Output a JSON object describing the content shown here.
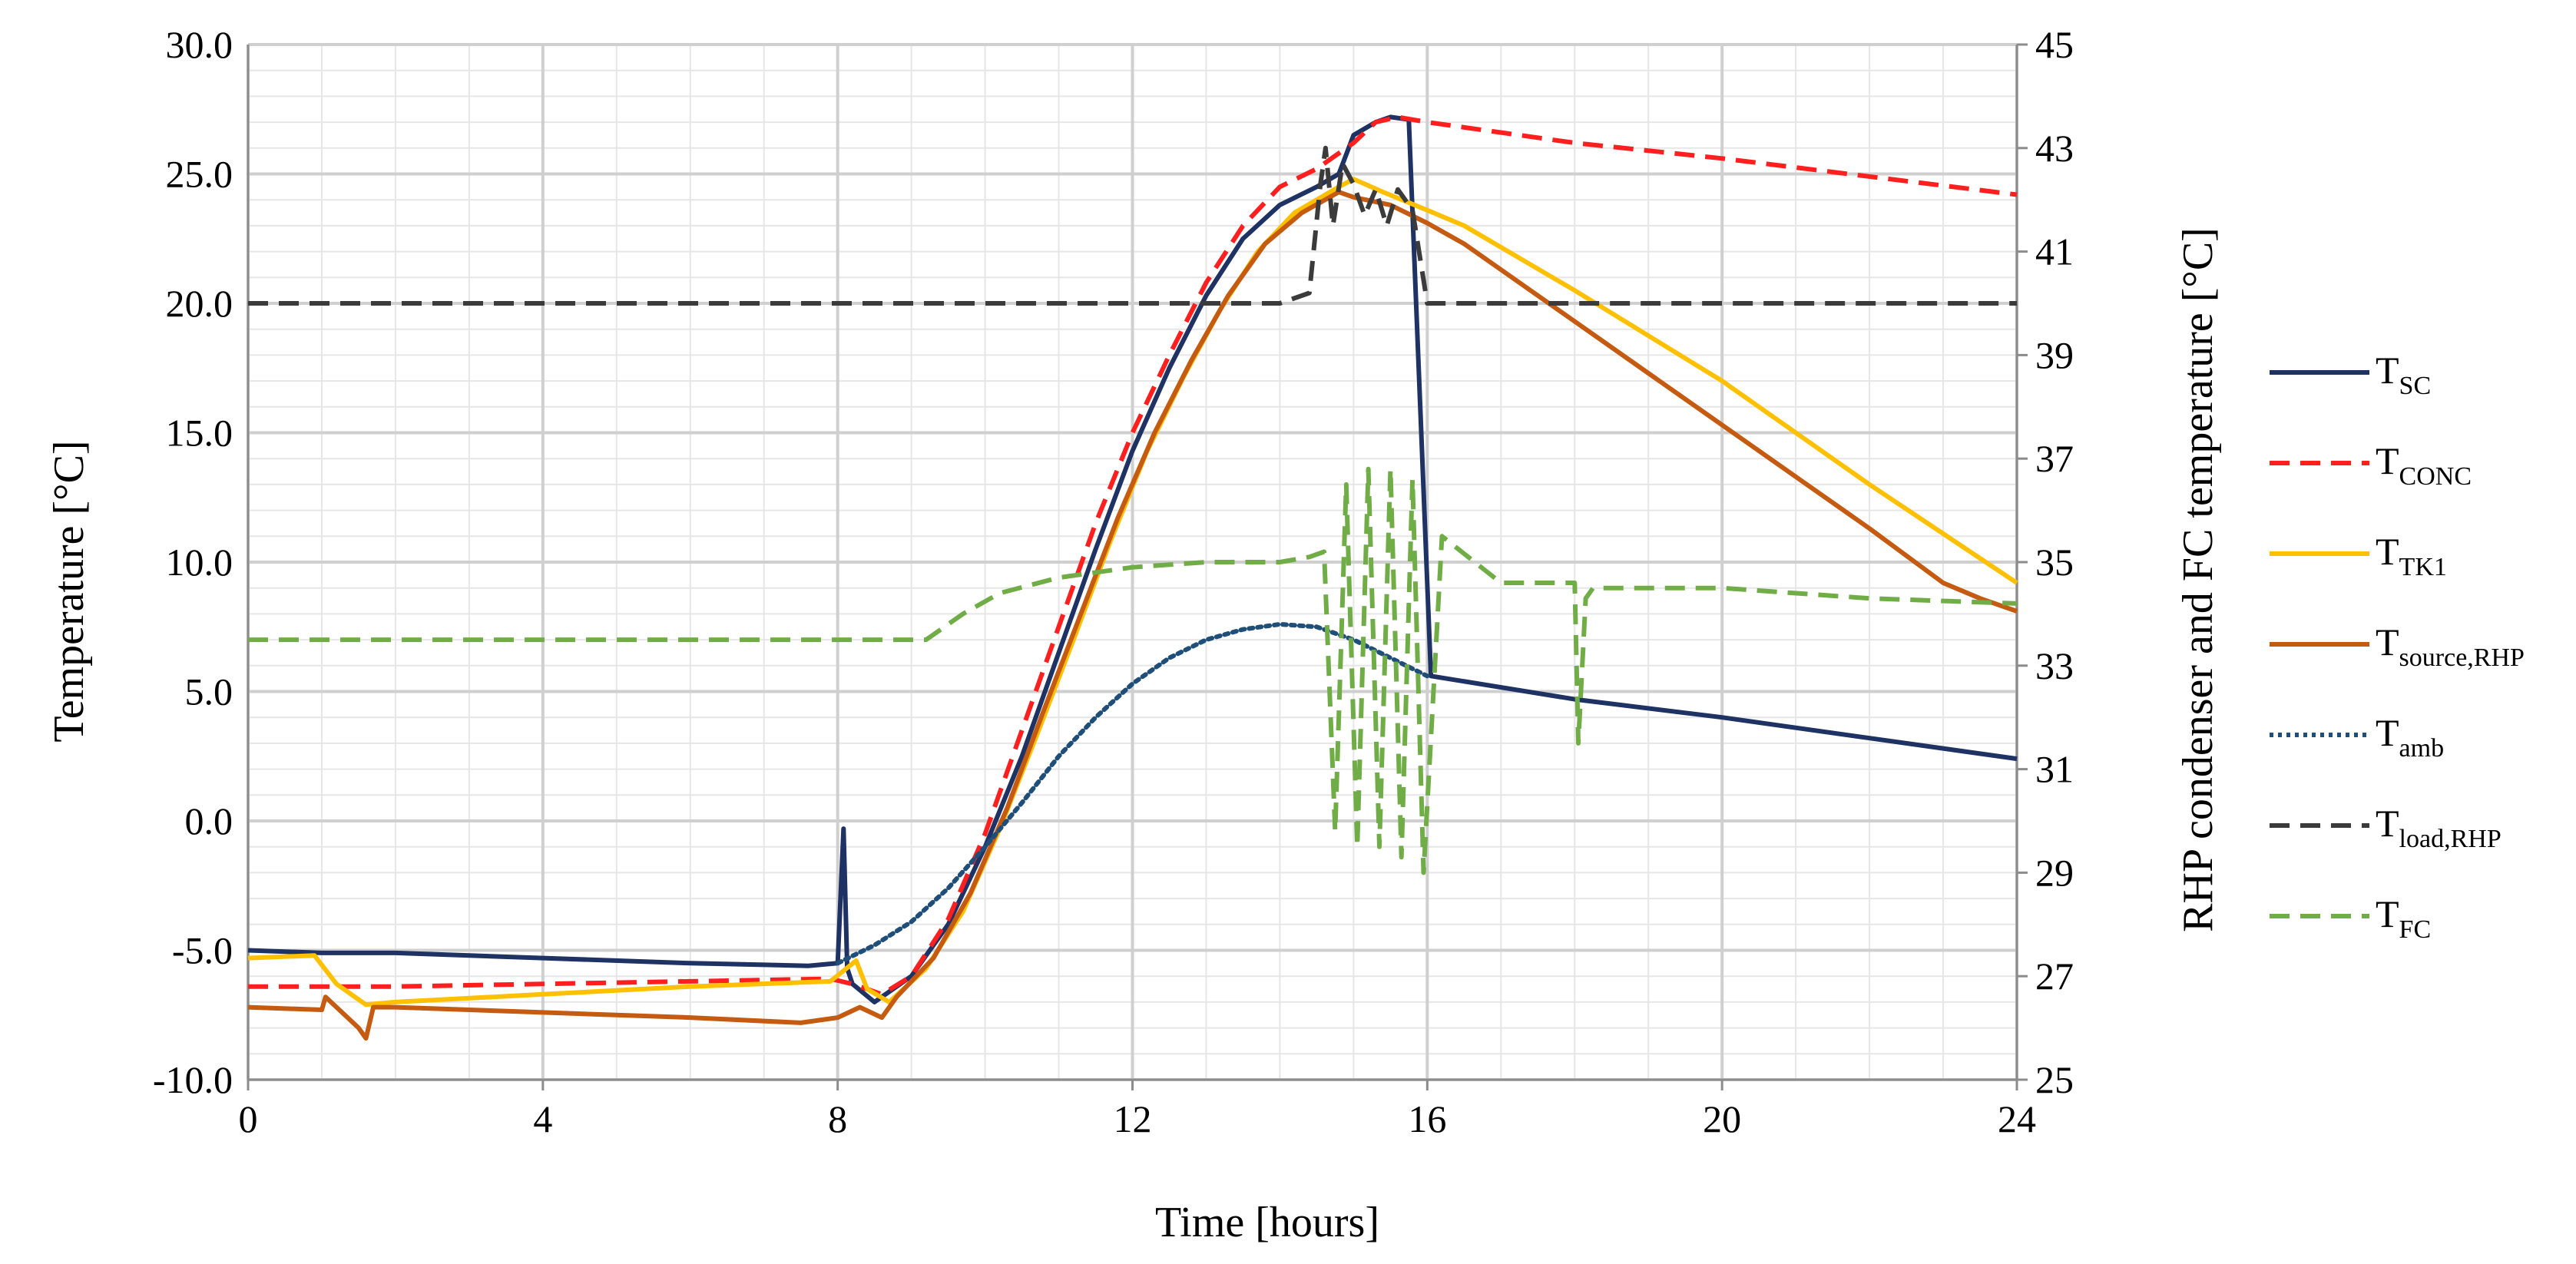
{
  "chart_data": {
    "type": "line",
    "xlabel": "Time [hours]",
    "ylabel": "Temperature [°C]",
    "y2label": "RHP condenser and FC temperature [°C]",
    "xlim": [
      0,
      24
    ],
    "ylim": [
      -10,
      30
    ],
    "y2lim": [
      25,
      45
    ],
    "grid": true,
    "legend_position": "right",
    "x_ticks": [
      {
        "value": 0,
        "label": "0"
      },
      {
        "value": 4,
        "label": "4"
      },
      {
        "value": 8,
        "label": "8"
      },
      {
        "value": 12,
        "label": "12"
      },
      {
        "value": 16,
        "label": "16"
      },
      {
        "value": 20,
        "label": "20"
      },
      {
        "value": 24,
        "label": "24"
      }
    ],
    "y_ticks": [
      {
        "value": -10,
        "label": "-10.0"
      },
      {
        "value": -5,
        "label": "-5.0"
      },
      {
        "value": 0,
        "label": "0.0"
      },
      {
        "value": 5,
        "label": "5.0"
      },
      {
        "value": 10,
        "label": "10.0"
      },
      {
        "value": 15,
        "label": "15.0"
      },
      {
        "value": 20,
        "label": "20.0"
      },
      {
        "value": 25,
        "label": "25.0"
      },
      {
        "value": 30,
        "label": "30.0"
      }
    ],
    "y2_ticks": [
      {
        "value": 25,
        "label": "25"
      },
      {
        "value": 27,
        "label": "27"
      },
      {
        "value": 29,
        "label": "29"
      },
      {
        "value": 31,
        "label": "31"
      },
      {
        "value": 33,
        "label": "33"
      },
      {
        "value": 35,
        "label": "35"
      },
      {
        "value": 37,
        "label": "37"
      },
      {
        "value": 39,
        "label": "39"
      },
      {
        "value": 41,
        "label": "41"
      },
      {
        "value": 43,
        "label": "43"
      },
      {
        "value": 45,
        "label": "45"
      }
    ],
    "series": [
      {
        "id": "tsc",
        "name": "T",
        "sub": "SC",
        "axis": "left",
        "color": "#1f3264",
        "dash": "solid",
        "x": [
          0,
          1,
          2,
          4,
          6,
          7.6,
          8.0,
          8.08,
          8.13,
          8.2,
          8.5,
          9.0,
          9.5,
          10.0,
          10.5,
          11,
          11.5,
          12,
          12.5,
          13,
          13.5,
          14,
          14.5,
          14.8,
          15.0,
          15.3,
          15.5,
          15.75,
          16.05,
          18,
          20,
          22,
          24
        ],
        "y": [
          -5.0,
          -5.1,
          -5.1,
          -5.3,
          -5.5,
          -5.6,
          -5.5,
          -0.3,
          -5.7,
          -6.3,
          -7.0,
          -6.0,
          -4.0,
          -1.0,
          2.5,
          6.5,
          10.5,
          14.3,
          17.5,
          20.3,
          22.5,
          23.8,
          24.5,
          25.0,
          26.5,
          27.0,
          27.2,
          27.1,
          5.6,
          4.7,
          4.0,
          3.2,
          2.4
        ]
      },
      {
        "id": "tconc",
        "name": "T",
        "sub": "CONC",
        "axis": "left",
        "color": "#ff1f1f",
        "dash": "dashed",
        "x": [
          0,
          2,
          4,
          6,
          7.9,
          8.2,
          8.6,
          9.0,
          9.5,
          10.0,
          10.5,
          11,
          11.5,
          12,
          12.5,
          13,
          13.5,
          14,
          14.5,
          15,
          15.3,
          15.6,
          16,
          18,
          20,
          22,
          24
        ],
        "y": [
          -6.4,
          -6.4,
          -6.3,
          -6.2,
          -6.1,
          -6.3,
          -6.7,
          -6.0,
          -3.8,
          -0.5,
          3.5,
          7.5,
          11.5,
          15.0,
          18.0,
          20.8,
          23.0,
          24.5,
          25.2,
          26.2,
          27.0,
          27.2,
          27.0,
          26.2,
          25.6,
          24.9,
          24.2
        ]
      },
      {
        "id": "ttk1",
        "name": "T",
        "sub": "TK1",
        "axis": "left",
        "color": "#ffc000",
        "dash": "solid",
        "x": [
          0,
          0.9,
          1.2,
          1.6,
          2.0,
          4,
          6,
          7.9,
          8.25,
          8.4,
          8.7,
          9.2,
          9.7,
          10.2,
          10.7,
          11.2,
          11.7,
          12.2,
          12.7,
          13.2,
          13.7,
          14.2,
          14.8,
          15.0,
          15.4,
          16.0,
          16.5,
          18,
          20,
          22,
          24
        ],
        "y": [
          -5.3,
          -5.2,
          -6.3,
          -7.1,
          -7.0,
          -6.7,
          -6.4,
          -6.2,
          -5.4,
          -6.5,
          -7.0,
          -5.7,
          -3.5,
          -0.3,
          3.3,
          7.0,
          10.8,
          14.3,
          17.2,
          19.8,
          22.0,
          23.5,
          24.5,
          24.8,
          24.3,
          23.6,
          23.0,
          20.5,
          17.0,
          13.0,
          9.2
        ]
      },
      {
        "id": "tsource",
        "name": "T",
        "sub": "source,RHP",
        "axis": "left",
        "color": "#c55a11",
        "dash": "solid",
        "x": [
          0,
          1.0,
          1.05,
          1.5,
          1.6,
          1.7,
          2.0,
          4,
          6,
          7.5,
          8.0,
          8.3,
          8.6,
          8.8,
          9.3,
          9.8,
          10.3,
          10.8,
          11.3,
          11.8,
          12.3,
          12.8,
          13.3,
          13.8,
          14.3,
          14.8,
          15.0,
          15.5,
          16,
          16.5,
          17,
          18,
          19,
          20,
          21,
          22,
          23,
          23.5,
          24
        ],
        "y": [
          -7.2,
          -7.3,
          -6.8,
          -8.0,
          -8.4,
          -7.2,
          -7.2,
          -7.4,
          -7.6,
          -7.8,
          -7.6,
          -7.2,
          -7.6,
          -6.8,
          -5.3,
          -2.8,
          0.5,
          4.3,
          8.0,
          11.7,
          15.0,
          17.8,
          20.3,
          22.3,
          23.5,
          24.3,
          24.1,
          23.8,
          23.1,
          22.3,
          21.3,
          19.3,
          17.3,
          15.3,
          13.3,
          11.3,
          9.2,
          8.6,
          8.1
        ]
      },
      {
        "id": "tamb",
        "name": "T",
        "sub": "amb",
        "axis": "left",
        "color": "#1f4e79",
        "dash": "dotted",
        "x": [
          8.0,
          8.5,
          9,
          9.5,
          10,
          10.5,
          11,
          11.5,
          12,
          12.5,
          13,
          13.5,
          14,
          14.5,
          15,
          15.5,
          16
        ],
        "y": [
          -5.5,
          -4.8,
          -3.9,
          -2.6,
          -1.0,
          0.7,
          2.5,
          4.0,
          5.3,
          6.3,
          7.0,
          7.4,
          7.6,
          7.5,
          7.0,
          6.3,
          5.6
        ]
      },
      {
        "id": "tload",
        "name": "T",
        "sub": "load,RHP",
        "axis": "right",
        "color": "#3b3b3b",
        "dash": "dashed",
        "x": [
          0,
          1,
          2,
          4,
          6,
          8,
          9,
          10,
          11,
          12,
          13,
          14,
          14.4,
          14.55,
          14.62,
          14.72,
          14.85,
          15.0,
          15.15,
          15.3,
          15.45,
          15.6,
          15.8,
          16.0,
          16.5,
          18,
          20,
          21,
          22,
          23,
          24
        ],
        "y": [
          40.0,
          40.0,
          40.0,
          40.0,
          40.0,
          40.0,
          40.0,
          40.0,
          40.0,
          40.0,
          40.0,
          40.0,
          40.2,
          42.3,
          43.0,
          41.5,
          42.7,
          42.3,
          41.7,
          42.2,
          41.5,
          42.2,
          41.8,
          40.0,
          40.0,
          40.0,
          40.0,
          40.0,
          40.0,
          40.0,
          40.0
        ]
      },
      {
        "id": "tfc",
        "name": "T",
        "sub": "FC",
        "axis": "right",
        "color": "#70ad47",
        "dash": "dashed",
        "x": [
          0,
          2,
          4,
          6,
          8,
          9.2,
          9.7,
          10.2,
          11,
          12,
          13,
          14,
          14.4,
          14.6,
          14.75,
          14.9,
          15.05,
          15.2,
          15.35,
          15.5,
          15.65,
          15.8,
          15.95,
          16.2,
          17,
          18.0,
          18.05,
          18.15,
          18.25,
          19,
          20,
          22,
          24
        ],
        "y": [
          33.5,
          33.5,
          33.5,
          33.5,
          33.5,
          33.5,
          34.0,
          34.4,
          34.7,
          34.9,
          35.0,
          35.0,
          35.1,
          35.2,
          29.8,
          36.5,
          29.5,
          36.8,
          29.5,
          36.8,
          29.3,
          36.6,
          29.0,
          35.5,
          34.6,
          34.6,
          31.5,
          34.3,
          34.5,
          34.5,
          34.5,
          34.3,
          34.2
        ]
      }
    ]
  }
}
